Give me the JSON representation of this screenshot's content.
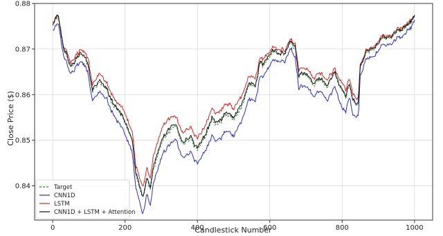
{
  "chart_data": {
    "type": "line",
    "title": "",
    "xlabel": "Candlestick Number",
    "ylabel": "Close Price ($)",
    "xlim": [
      -50,
      1050
    ],
    "ylim": [
      0.8325,
      0.88
    ],
    "x_ticks": [
      0,
      200,
      400,
      600,
      800,
      1000
    ],
    "y_ticks": [
      0.84,
      0.85,
      0.86,
      0.87,
      0.88
    ],
    "x_tick_labels": [
      "0",
      "200",
      "400",
      "600",
      "800",
      "1000"
    ],
    "y_tick_labels": [
      "0.84",
      "0.85",
      "0.86",
      "0.87",
      "0.88"
    ],
    "grid": true,
    "legend_position": "lower-left",
    "anchor_x": [
      0,
      10,
      15,
      20,
      30,
      40,
      50,
      60,
      80,
      100,
      110,
      130,
      150,
      170,
      180,
      190,
      200,
      220,
      230,
      240,
      250,
      260,
      270,
      280,
      300,
      320,
      340,
      360,
      380,
      400,
      420,
      440,
      460,
      480,
      500,
      520,
      540,
      560,
      575,
      580,
      600,
      620,
      640,
      650,
      660,
      670,
      680,
      700,
      720,
      740,
      760,
      780,
      790,
      800,
      810,
      820,
      830,
      840,
      845,
      850,
      860,
      870,
      890,
      910,
      930,
      950,
      970,
      990,
      1000
    ],
    "series": [
      {
        "name": "Target",
        "color": "#2e8b2e",
        "dash": "3,2",
        "values": [
          0.8755,
          0.8765,
          0.877,
          0.8755,
          0.8695,
          0.868,
          0.8665,
          0.867,
          0.869,
          0.866,
          0.861,
          0.862,
          0.86,
          0.857,
          0.8565,
          0.855,
          0.854,
          0.85,
          0.842,
          0.84,
          0.838,
          0.842,
          0.84,
          0.844,
          0.849,
          0.851,
          0.853,
          0.849,
          0.85,
          0.848,
          0.85,
          0.854,
          0.853,
          0.856,
          0.855,
          0.857,
          0.861,
          0.862,
          0.868,
          0.8665,
          0.869,
          0.8695,
          0.869,
          0.8705,
          0.8715,
          0.87,
          0.864,
          0.865,
          0.863,
          0.864,
          0.862,
          0.864,
          0.862,
          0.861,
          0.858,
          0.862,
          0.859,
          0.857,
          0.858,
          0.866,
          0.868,
          0.87,
          0.871,
          0.872,
          0.873,
          0.874,
          0.875,
          0.8755,
          0.877
        ]
      },
      {
        "name": "CNN1D",
        "color": "#2a2ae0",
        "values": [
          0.8745,
          0.875,
          0.876,
          0.874,
          0.868,
          0.8665,
          0.865,
          0.8655,
          0.8675,
          0.864,
          0.859,
          0.86,
          0.858,
          0.855,
          0.854,
          0.8525,
          0.8515,
          0.8475,
          0.839,
          0.837,
          0.8345,
          0.839,
          0.8365,
          0.841,
          0.846,
          0.848,
          0.85,
          0.846,
          0.847,
          0.845,
          0.847,
          0.8505,
          0.8495,
          0.8525,
          0.8515,
          0.854,
          0.858,
          0.859,
          0.865,
          0.864,
          0.867,
          0.868,
          0.8675,
          0.869,
          0.87,
          0.868,
          0.8615,
          0.8625,
          0.8605,
          0.8615,
          0.859,
          0.861,
          0.859,
          0.857,
          0.855,
          0.8595,
          0.856,
          0.8545,
          0.8555,
          0.864,
          0.8665,
          0.8685,
          0.8695,
          0.8705,
          0.8715,
          0.8725,
          0.8735,
          0.8745,
          0.876
        ]
      },
      {
        "name": "LSTM",
        "color": "#e02020",
        "values": [
          0.876,
          0.877,
          0.8775,
          0.876,
          0.87,
          0.869,
          0.8675,
          0.868,
          0.87,
          0.8675,
          0.8625,
          0.864,
          0.8615,
          0.859,
          0.858,
          0.857,
          0.856,
          0.852,
          0.844,
          0.842,
          0.8405,
          0.8445,
          0.8425,
          0.847,
          0.852,
          0.854,
          0.855,
          0.8515,
          0.8525,
          0.8505,
          0.8525,
          0.8565,
          0.8555,
          0.8585,
          0.8575,
          0.8595,
          0.863,
          0.864,
          0.869,
          0.868,
          0.87,
          0.8705,
          0.87,
          0.8715,
          0.872,
          0.871,
          0.8655,
          0.8665,
          0.8645,
          0.8655,
          0.8635,
          0.865,
          0.8635,
          0.8625,
          0.86,
          0.8635,
          0.8605,
          0.8585,
          0.8595,
          0.8665,
          0.8685,
          0.8705,
          0.8715,
          0.8725,
          0.8735,
          0.8745,
          0.8755,
          0.876,
          0.8775
        ]
      },
      {
        "name": "CNN1D + LSTM + Attention",
        "color": "#111111",
        "values": [
          0.8755,
          0.8768,
          0.8778,
          0.8757,
          0.8697,
          0.8682,
          0.8667,
          0.8672,
          0.8692,
          0.8663,
          0.8613,
          0.8625,
          0.8603,
          0.8575,
          0.8567,
          0.8553,
          0.8542,
          0.8503,
          0.8424,
          0.8404,
          0.8383,
          0.8425,
          0.8405,
          0.8447,
          0.8496,
          0.8516,
          0.8534,
          0.8495,
          0.8505,
          0.8485,
          0.8505,
          0.8545,
          0.8535,
          0.8565,
          0.8555,
          0.8576,
          0.8614,
          0.8624,
          0.8682,
          0.8668,
          0.8693,
          0.8698,
          0.8693,
          0.8708,
          0.8718,
          0.8703,
          0.8643,
          0.8653,
          0.8633,
          0.8643,
          0.8623,
          0.8643,
          0.8623,
          0.8612,
          0.8583,
          0.8623,
          0.8593,
          0.8573,
          0.8583,
          0.8662,
          0.8682,
          0.8702,
          0.8712,
          0.8722,
          0.8732,
          0.8742,
          0.8752,
          0.8757,
          0.8772
        ]
      }
    ]
  }
}
